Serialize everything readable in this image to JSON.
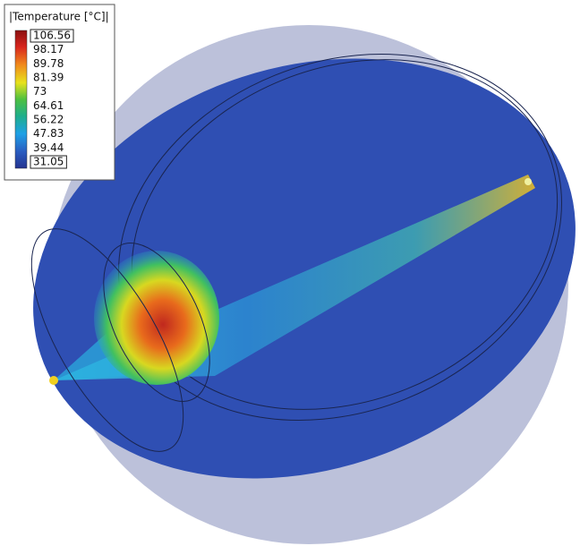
{
  "legend": {
    "title": "|Temperature [°C]|",
    "labels": [
      "106.56",
      "98.17",
      "89.78",
      "81.39",
      "73",
      "64.61",
      "56.22",
      "47.83",
      "39.44",
      "31.05"
    ]
  }
}
